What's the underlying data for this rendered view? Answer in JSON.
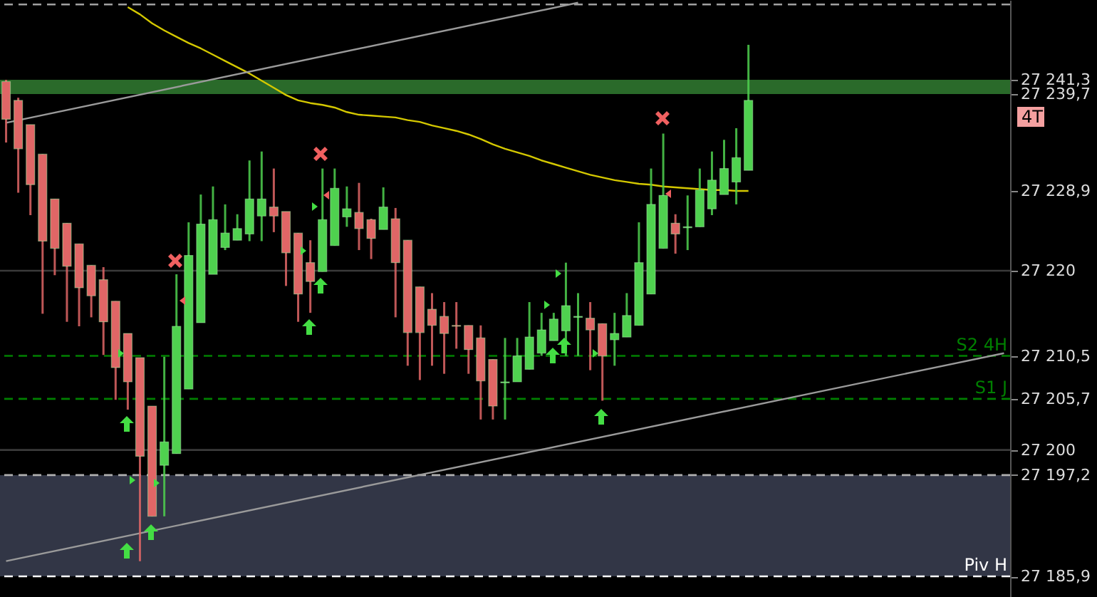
{
  "chart_data": {
    "type": "candlestick",
    "categories": [
      null,
      null,
      null,
      null,
      null,
      null,
      null,
      null,
      null,
      null,
      null,
      null,
      null,
      null,
      null,
      null,
      null,
      null,
      null,
      null,
      null,
      null,
      null,
      null,
      null,
      null,
      null,
      null,
      null,
      null,
      null,
      null,
      null,
      null,
      null,
      null,
      null,
      null,
      null,
      null,
      null,
      null,
      null,
      null,
      null,
      null,
      null,
      null,
      null,
      null,
      null,
      null,
      null,
      null,
      null,
      null,
      null,
      null,
      null,
      null,
      null,
      null,
      null,
      null,
      null,
      null,
      null,
      null,
      null,
      null,
      null,
      null,
      null,
      null,
      null,
      null,
      null,
      null,
      null,
      null,
      null,
      null,
      null
    ],
    "ohlc": [
      [
        27241.1,
        27241.3,
        27234.3,
        27236.9
      ],
      [
        27239.0,
        27239.3,
        27228.7,
        27233.6
      ],
      [
        27236.3,
        27236.3,
        27226.2,
        27229.6
      ],
      [
        27233.0,
        27233.0,
        27215.2,
        27223.3
      ],
      [
        27228.0,
        27228.0,
        27219.5,
        27222.5
      ],
      [
        27225.3,
        27225.3,
        27214.3,
        27220.5
      ],
      [
        27223.0,
        27223.0,
        27213.8,
        27218.1
      ],
      [
        27220.6,
        27220.6,
        27214.8,
        27217.2
      ],
      [
        27219.0,
        27220.4,
        27210.6,
        27214.3
      ],
      [
        27216.6,
        27216.6,
        27205.6,
        27209.2
      ],
      [
        27213.0,
        27213.0,
        27204.5,
        27207.6
      ],
      [
        27210.3,
        27210.3,
        27187.6,
        27199.3
      ],
      [
        27204.9,
        27204.9,
        27192.6,
        27192.6
      ],
      [
        27198.3,
        27210.4,
        27192.6,
        27200.9
      ],
      [
        27199.6,
        27219.6,
        27199.6,
        27213.8
      ],
      [
        27206.8,
        27225.4,
        27206.8,
        27221.7
      ],
      [
        27214.2,
        27228.5,
        27214.2,
        27225.2
      ],
      [
        27219.6,
        27229.4,
        27219.6,
        27225.7
      ],
      [
        27222.6,
        27227.4,
        27222.3,
        27224.2
      ],
      [
        27223.4,
        27226.3,
        27223.4,
        27224.7
      ],
      [
        27224.1,
        27232.3,
        27223.3,
        27228.0
      ],
      [
        27226.1,
        27233.3,
        27223.3,
        27228.0
      ],
      [
        27227.1,
        27231.4,
        27224.3,
        27226.1
      ],
      [
        27226.6,
        27226.6,
        27218.3,
        27222.0
      ],
      [
        27224.2,
        27224.2,
        27214.3,
        27217.4
      ],
      [
        27220.9,
        27223.4,
        27215.3,
        27218.8
      ],
      [
        27219.9,
        27231.4,
        27219.9,
        27225.7
      ],
      [
        27222.8,
        27231.4,
        27222.8,
        27229.2
      ],
      [
        27226.0,
        27229.4,
        27224.9,
        27226.9
      ],
      [
        27226.5,
        27229.8,
        27222.3,
        27224.7
      ],
      [
        27225.7,
        27225.8,
        27221.3,
        27223.6
      ],
      [
        27224.6,
        27229.3,
        27224.6,
        27227.1
      ],
      [
        27225.8,
        27227.0,
        27214.8,
        27220.9
      ],
      [
        27223.4,
        27223.4,
        27209.4,
        27213.1
      ],
      [
        27218.2,
        27218.2,
        27207.8,
        27213.1
      ],
      [
        27215.7,
        27217.5,
        27209.4,
        27213.9
      ],
      [
        27214.9,
        27216.5,
        27208.5,
        27213.0
      ],
      [
        27213.9,
        27216.5,
        27211.3,
        27213.8
      ],
      [
        27213.9,
        27213.9,
        27208.5,
        27211.2
      ],
      [
        27212.5,
        27213.9,
        27203.4,
        27207.7
      ],
      [
        27210.1,
        27210.1,
        27203.4,
        27204.9
      ],
      [
        27207.5,
        27212.5,
        27203.4,
        27207.6
      ],
      [
        27207.6,
        27212.5,
        27207.6,
        27210.5
      ],
      [
        27209.0,
        27216.5,
        27209.0,
        27212.6
      ],
      [
        27210.8,
        27215.3,
        27210.5,
        27213.4
      ],
      [
        27212.2,
        27215.3,
        27212.2,
        27214.6
      ],
      [
        27213.3,
        27220.9,
        27210.5,
        27216.1
      ],
      [
        27214.8,
        27217.5,
        27210.5,
        27214.9
      ],
      [
        27214.7,
        27216.5,
        27208.9,
        27213.4
      ],
      [
        27214.1,
        27214.1,
        27205.5,
        27210.5
      ],
      [
        27212.3,
        27215.3,
        27209.4,
        27213.0
      ],
      [
        27212.6,
        27217.5,
        27212.6,
        27215.0
      ],
      [
        27213.9,
        27225.4,
        27213.9,
        27220.9
      ],
      [
        27217.4,
        27231.4,
        27217.4,
        27227.4
      ],
      [
        27222.5,
        27235.3,
        27222.5,
        27228.4
      ],
      [
        27225.3,
        27226.3,
        27221.9,
        27224.1
      ],
      [
        27224.8,
        27228.4,
        27222.3,
        27224.9
      ],
      [
        27224.9,
        27231.4,
        27224.9,
        27229.0
      ],
      [
        27226.9,
        27233.3,
        27226.2,
        27230.1
      ],
      [
        27228.5,
        27234.6,
        27228.5,
        27231.4
      ],
      [
        27229.9,
        27235.9,
        27227.4,
        27232.6
      ],
      [
        27231.2,
        27245.2,
        27231.2,
        27239.0
      ],
      null,
      null,
      null,
      null,
      null,
      null,
      null,
      null,
      null,
      null,
      null,
      null,
      null,
      null,
      null,
      null,
      null,
      null,
      null,
      null,
      null
    ],
    "colors": [
      "#e06666",
      "#e06666",
      "#e06666",
      "#e06666",
      "#e06666",
      "#e06666",
      "#e06666",
      "#e06666",
      "#e06666",
      "#e06666",
      "#e06666",
      "#e06666",
      "#e06666",
      "#4fd14f",
      "#4fd14f",
      "#4fd14f",
      "#4fd14f",
      "#4fd14f",
      "#4fd14f",
      "#4fd14f",
      "#4fd14f",
      "#4fd14f",
      "#e06666",
      "#e06666",
      "#e06666",
      "#e06666",
      "#4fd14f",
      "#4fd14f",
      "#4fd14f",
      "#e06666",
      "#e06666",
      "#4fd14f",
      "#e06666",
      "#e06666",
      "#e06666",
      "#e06666",
      "#e06666",
      "#e06666",
      "#e06666",
      "#e06666",
      "#e06666",
      "#4fd14f",
      "#4fd14f",
      "#4fd14f",
      "#4fd14f",
      "#4fd14f",
      "#4fd14f",
      "#4fd14f",
      "#e06666",
      "#e06666",
      "#4fd14f",
      "#4fd14f",
      "#4fd14f",
      "#4fd14f",
      "#4fd14f",
      "#e06666",
      "#4fd14f",
      "#4fd14f",
      "#4fd14f",
      "#4fd14f",
      "#4fd14f",
      "#4fd14f",
      null,
      null,
      null,
      null,
      null,
      null,
      null,
      null,
      null,
      null,
      null,
      null,
      null,
      null,
      null,
      null,
      null,
      null,
      null,
      null,
      null
    ],
    "series": [
      {
        "type": "line",
        "color": "#d4c800",
        "values": [
          null,
          null,
          null,
          null,
          null,
          null,
          null,
          null,
          null,
          null,
          27249.4,
          27248.6,
          27247.6,
          27246.8,
          27246.1,
          27245.4,
          27244.8,
          27244.1,
          27243.4,
          27242.7,
          27242.0,
          27241.2,
          27240.4,
          27239.6,
          27239.0,
          27238.7,
          27238.5,
          27238.2,
          27237.7,
          27237.4,
          27237.3,
          27237.2,
          27237.1,
          27236.8,
          27236.6,
          27236.2,
          27235.9,
          27235.6,
          27235.2,
          27234.7,
          27234.1,
          27233.6,
          27233.2,
          27232.8,
          27232.3,
          27231.9,
          27231.5,
          27231.1,
          27230.7,
          27230.4,
          27230.1,
          27229.9,
          27229.7,
          27229.6,
          27229.4,
          27229.3,
          27229.2,
          27229.1,
          27229.0,
          27229.0,
          27228.9,
          27228.9,
          null,
          null,
          null,
          null,
          null,
          null,
          null,
          null,
          null,
          null,
          null,
          null,
          null,
          null,
          null,
          null,
          null,
          null,
          null,
          null,
          null
        ]
      },
      {
        "type": "line",
        "color": "#9a9a9a",
        "values": [
          27236.5,
          null,
          null,
          null,
          null,
          null,
          null,
          null,
          null,
          null,
          null,
          null,
          null,
          null,
          null,
          null,
          null,
          null,
          null,
          null,
          null,
          null,
          null,
          null,
          null,
          null,
          null,
          null,
          null,
          null,
          null,
          null,
          null,
          null,
          null,
          null,
          null,
          null,
          null,
          null,
          null,
          null,
          null,
          null,
          null,
          null,
          null,
          27249.9,
          null,
          null,
          null,
          null,
          null,
          null,
          null,
          null,
          null,
          null,
          null,
          null,
          null,
          null,
          null,
          null,
          null,
          null,
          null,
          null,
          null,
          null,
          null,
          null,
          null,
          null,
          null,
          null,
          null,
          null,
          null,
          null,
          null,
          null,
          null
        ]
      },
      {
        "type": "line",
        "color": "#9a9a9a",
        "values": [
          27187.6,
          null,
          null,
          null,
          null,
          null,
          null,
          null,
          null,
          null,
          null,
          null,
          null,
          null,
          null,
          null,
          null,
          null,
          null,
          null,
          null,
          null,
          null,
          null,
          null,
          null,
          null,
          null,
          null,
          null,
          null,
          null,
          null,
          null,
          null,
          null,
          null,
          null,
          null,
          null,
          null,
          null,
          null,
          null,
          null,
          null,
          null,
          null,
          null,
          null,
          null,
          null,
          null,
          null,
          null,
          null,
          null,
          null,
          null,
          null,
          null,
          null,
          null,
          null,
          null,
          null,
          null,
          null,
          null,
          null,
          null,
          null,
          null,
          null,
          null,
          null,
          null,
          null,
          null,
          null,
          null,
          null,
          27210.8
        ]
      }
    ],
    "ylim": [
      27183.6,
      27250.2
    ],
    "yticks": [
      {
        "value": 27241.3,
        "label": "27 241,3"
      },
      {
        "value": 27239.7,
        "label": "27 239,7"
      },
      {
        "value": 27228.9,
        "label": "27 228,9"
      },
      {
        "value": 27220,
        "label": "27 220"
      },
      {
        "value": 27210.5,
        "label": "27 210,5"
      },
      {
        "value": 27205.7,
        "label": "27 205,7"
      },
      {
        "value": 27200,
        "label": "27 200"
      },
      {
        "value": 27197.2,
        "label": "27 197,2"
      },
      {
        "value": 27185.9,
        "label": "27 185,9"
      }
    ],
    "tick_labels": "y",
    "bands": [
      {
        "axis": "y",
        "from": 27239.7,
        "to": 27241.3,
        "color": "#2a6a2a"
      },
      {
        "axis": "y",
        "from": 27185.9,
        "to": 27197.2,
        "color": "#323646"
      }
    ],
    "ref_lines": [
      {
        "axis": "y",
        "value": 27249.7,
        "color": "#a0a0a0",
        "line_style": "dashed"
      },
      {
        "axis": "y",
        "value": 27220,
        "color": "#3a3a3a"
      },
      {
        "axis": "y",
        "value": 27200,
        "color": "#3a3a3a"
      },
      {
        "axis": "y",
        "value": 27210.5,
        "label": "S2 4H",
        "color": "#008000",
        "line_style": "dashed"
      },
      {
        "axis": "y",
        "value": 27205.7,
        "label": "S1 J",
        "color": "#008000",
        "line_style": "dashed"
      },
      {
        "axis": "y",
        "value": 27197.2,
        "color": "#b0b0b0",
        "line_style": "dashed"
      },
      {
        "axis": "y",
        "value": 27185.9,
        "label": "Piv H",
        "color": "#ffffff",
        "line_style": "dashed"
      }
    ],
    "annotations": [
      "4T"
    ]
  }
}
